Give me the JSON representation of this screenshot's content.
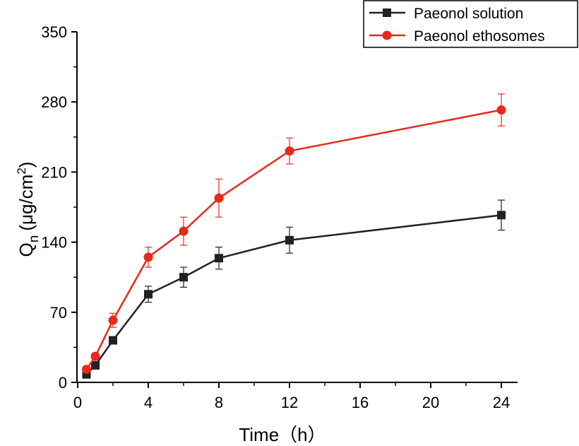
{
  "chart_data": {
    "type": "line",
    "title": "",
    "xlabel": "Time（h）",
    "ylabel": {
      "main": "Q",
      "subscript": "n",
      "unit_prefix": "(μg/cm",
      "superscript": "2",
      "unit_suffix": ")"
    },
    "ylim": [
      0,
      350
    ],
    "yticks": [
      "0",
      "70",
      "140",
      "210",
      "280",
      "350"
    ],
    "xticks": [
      "0",
      "4",
      "8",
      "12",
      "16",
      "20",
      "24"
    ],
    "x_note": "x axis is broken: 0-12 h linear, then 16, 20, 24 placed at equal spacing",
    "x": [
      0.5,
      1,
      2,
      4,
      6,
      8,
      12,
      24
    ],
    "series": [
      {
        "name": "Paeonol solution",
        "color": "#222222",
        "marker": "square",
        "values": [
          8,
          17,
          42,
          88,
          105,
          124,
          142,
          167
        ],
        "errors": [
          3,
          3,
          3,
          8,
          10,
          11,
          13,
          15
        ]
      },
      {
        "name": "Paeonol ethosomes",
        "color": "#e8291c",
        "marker": "circle",
        "values": [
          13,
          26,
          62,
          125,
          151,
          184,
          231,
          272
        ],
        "errors": [
          2,
          3,
          7,
          10,
          14,
          19,
          13,
          16
        ]
      }
    ],
    "legend": {
      "placement": "top-right",
      "entries": [
        "Paeonol solution",
        "Paeonol ethosomes"
      ]
    }
  }
}
